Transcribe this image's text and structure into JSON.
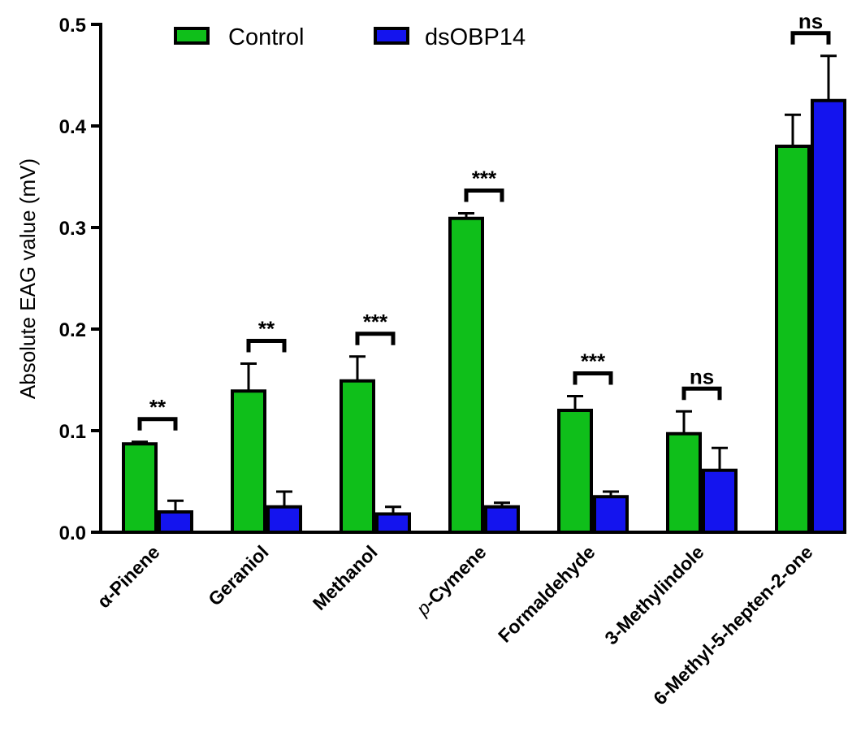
{
  "chart_data": {
    "type": "bar",
    "ylabel": "Absolute EAG value (mV)",
    "xlabel": "",
    "ylim": [
      0,
      0.5
    ],
    "yticks": [
      "0.0",
      "0.1",
      "0.2",
      "0.3",
      "0.4",
      "0.5"
    ],
    "legend_position": "top",
    "categories": [
      {
        "prefix": "",
        "name": "α-Pinene"
      },
      {
        "prefix": "",
        "name": "Geraniol"
      },
      {
        "prefix": "",
        "name": "Methanol"
      },
      {
        "prefix": "p",
        "name": "-Cymene"
      },
      {
        "prefix": "",
        "name": "Formaldehyde"
      },
      {
        "prefix": "",
        "name": "3-Methylindole"
      },
      {
        "prefix": "",
        "name": "6-Methyl-5-hepten-2-one"
      }
    ],
    "series": [
      {
        "name": "Control",
        "color": "#0fbf1a",
        "values": [
          0.087,
          0.139,
          0.149,
          0.309,
          0.12,
          0.097,
          0.38
        ],
        "errors": [
          0.002,
          0.027,
          0.024,
          0.005,
          0.014,
          0.022,
          0.031
        ]
      },
      {
        "name": "dsOBP14",
        "color": "#1414ee",
        "values": [
          0.02,
          0.025,
          0.018,
          0.025,
          0.035,
          0.061,
          0.425
        ],
        "errors": [
          0.011,
          0.015,
          0.007,
          0.004,
          0.005,
          0.022,
          0.044
        ]
      }
    ],
    "significance": [
      "**",
      "**",
      "***",
      "***",
      "***",
      "ns",
      "ns"
    ]
  }
}
